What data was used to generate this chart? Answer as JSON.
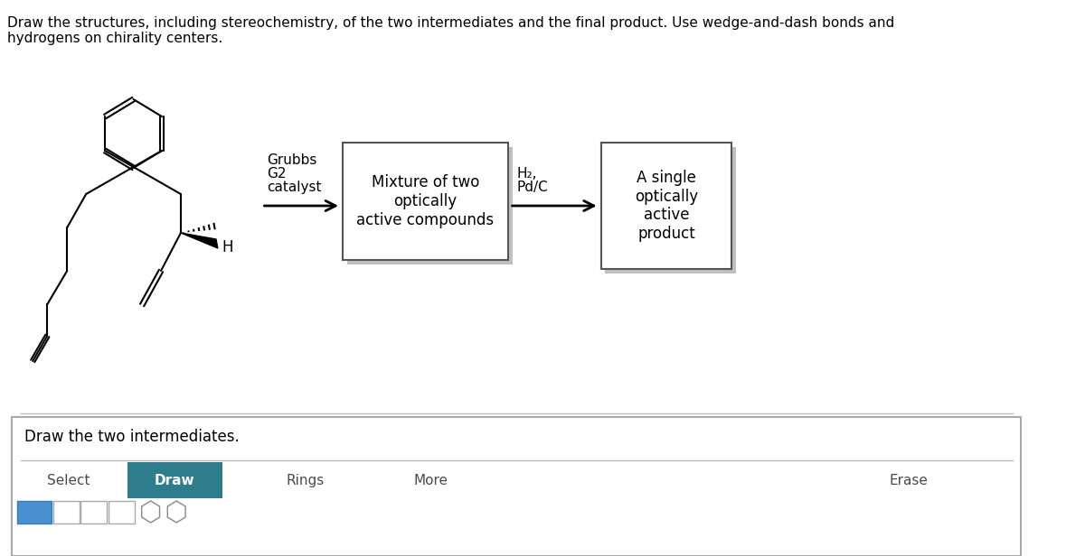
{
  "title_text": "Draw the structures, including stereochemistry, of the two intermediates and the final product. Use wedge-and-dash bonds and\nhydrogens on chirality centers.",
  "box1_text": "Mixture of two\noptically\nactive compounds",
  "box2_text": "A single\noptically\nactive\nproduct",
  "arrow1_label_line1": "Grubbs",
  "arrow1_label_line2": "G2",
  "arrow1_label_line3": "catalyst",
  "arrow2_label_line1": "H₂,",
  "arrow2_label_line2": "Pd/C",
  "bottom_label": "Draw the two intermediates.",
  "toolbar_select": "Select",
  "toolbar_draw": "Draw",
  "toolbar_rings": "Rings",
  "toolbar_more": "More",
  "toolbar_erase": "Erase",
  "bg_color": "#ffffff",
  "box_shadow_color": "#cccccc",
  "toolbar_draw_bg": "#2e7d8c",
  "toolbar_text_color": "#4a4a4a",
  "line_color": "#000000",
  "font_size_title": 11,
  "font_size_box": 12,
  "font_size_label": 11,
  "font_size_bottom": 12
}
